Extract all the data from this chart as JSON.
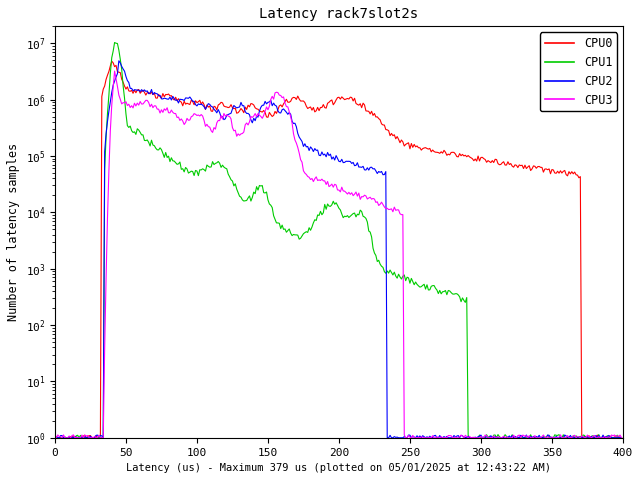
{
  "title": "Latency rack7slot2s",
  "xlabel": "Latency (us) - Maximum 379 us (plotted on 05/01/2025 at 12:43:22 AM)",
  "ylabel": "Number of latency samples",
  "xlim": [
    0,
    400
  ],
  "ylim_log": [
    1,
    20000000.0
  ],
  "legend": [
    "CPU0",
    "CPU1",
    "CPU2",
    "CPU3"
  ],
  "colors": [
    "#ff0000",
    "#00cc00",
    "#0000ff",
    "#ff00ff"
  ],
  "background_color": "#ffffff",
  "linewidth": 0.8
}
